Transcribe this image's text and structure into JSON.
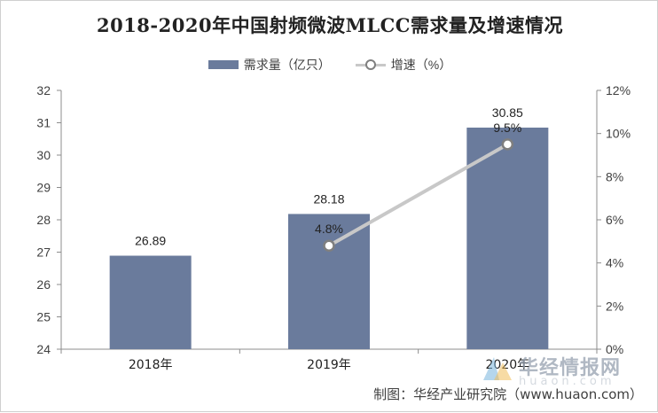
{
  "chart_data": {
    "type": "bar",
    "title": "2018-2020年中国射频微波MLCC需求量及增速情况",
    "categories": [
      "2018年",
      "2019年",
      "2020年"
    ],
    "series": [
      {
        "name": "需求量（亿只）",
        "type": "bar",
        "axis": "left",
        "values": [
          26.89,
          28.18,
          30.85
        ],
        "labels": [
          "26.89",
          "28.18",
          "30.85"
        ],
        "color": "#6a7b9c"
      },
      {
        "name": "增速（%）",
        "type": "line",
        "axis": "right",
        "x": [
          "2019年",
          "2020年"
        ],
        "values": [
          4.8,
          9.5
        ],
        "labels": [
          "4.8%",
          "9.5%"
        ],
        "color": "#c8c8c8",
        "marker_color": "#7f7f7f"
      }
    ],
    "y_left": {
      "ylim": [
        24,
        32
      ],
      "ticks": [
        "24",
        "25",
        "26",
        "27",
        "28",
        "29",
        "30",
        "31",
        "32"
      ]
    },
    "y_right": {
      "ylim": [
        0,
        12
      ],
      "ticks": [
        "0%",
        "2%",
        "4%",
        "6%",
        "8%",
        "10%",
        "12%"
      ]
    },
    "grid": false,
    "legend_position": "top-center"
  },
  "source": "制图：华经产业研究院（www.huaon.com）",
  "watermark": {
    "text": "华经情报网",
    "url": "huaon.com"
  }
}
